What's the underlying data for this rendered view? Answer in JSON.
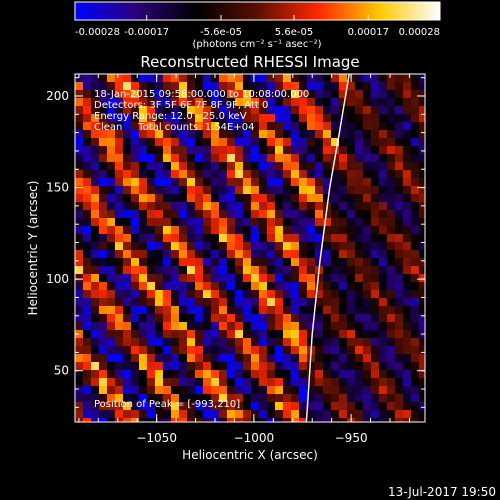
{
  "colorbar": {
    "tick_labels": [
      "-0.00028",
      "-0.00017",
      "-5.6e-05",
      "5.6e-05",
      "0.00017",
      "0.00028"
    ],
    "tick_values": [
      -0.00028,
      -0.00017,
      -5.6e-05,
      5.6e-05,
      0.00017,
      0.00028
    ],
    "range": [
      -0.00028,
      0.00028
    ],
    "units_label": "(photons cm⁻² s⁻¹ asec⁻²)"
  },
  "chart_data": {
    "type": "heatmap",
    "title": "Reconstructed RHESSI Image",
    "xlabel": "Heliocentric X (arcsec)",
    "ylabel": "Heliocentric Y (arcsec)",
    "xlim": [
      -1092,
      -912
    ],
    "ylim": [
      22,
      212
    ],
    "x_ticks": [
      -1050,
      -1000,
      -950
    ],
    "x_tick_labels": [
      "−1050",
      "−1000",
      "−950"
    ],
    "y_ticks": [
      50,
      100,
      150,
      200
    ],
    "y_tick_labels": [
      "50",
      "100",
      "150",
      "200"
    ],
    "annotations": [
      "18-Jan-2015 09:58:00.000 to 10:08:00.000",
      "Detectors: 3F 5F 6F 7F 8F 9F, Att 0",
      "Energy Range: 12.0 - 25.0 keV",
      "Clean     Total counts: 1.54E+04"
    ],
    "peak_label": "Position of Peak = [-993,210]",
    "peak": [
      -993,
      210
    ],
    "limb_curve": [
      [
        -973,
        22
      ],
      [
        -970,
        70
      ],
      [
        -966,
        110
      ],
      [
        -961,
        150
      ],
      [
        -956,
        180
      ],
      [
        -951,
        212
      ]
    ],
    "colormap_stops": [
      "#0000ff",
      "#2a007a",
      "#000000",
      "#5a0f00",
      "#ff2800",
      "#ffc800",
      "#ffffff"
    ]
  },
  "footer": {
    "timestamp": "13-Jul-2017 19:50"
  }
}
